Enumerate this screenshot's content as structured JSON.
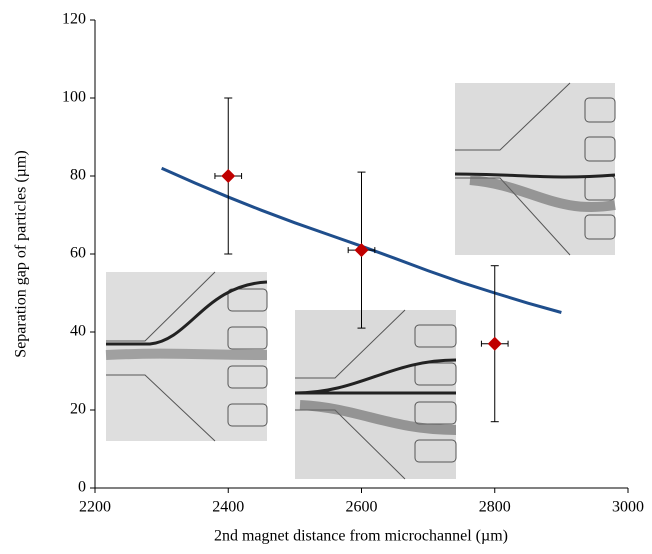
{
  "chart_data": {
    "type": "scatter",
    "xlabel": "2nd magnet distance from microchannel (µm)",
    "ylabel": "Separation gap of particles (µm)",
    "xlim": [
      2200,
      3000
    ],
    "xticks": [
      2200,
      2400,
      2600,
      2800,
      3000
    ],
    "ylim": [
      0,
      120
    ],
    "yticks": [
      0,
      20,
      40,
      60,
      80,
      100,
      120
    ],
    "series": [
      {
        "type": "line",
        "color": "#1f4e8c",
        "x": [
          2300,
          2350,
          2400,
          2450,
          2500,
          2550,
          2600,
          2650,
          2700,
          2750,
          2800,
          2850,
          2900
        ],
        "values": [
          82,
          78.2,
          74.6,
          71.2,
          68,
          65,
          62,
          58.9,
          55.7,
          52.7,
          50,
          47.4,
          45
        ]
      },
      {
        "type": "scatter",
        "color": "#c00000",
        "x": [
          2400,
          2600,
          2800
        ],
        "values": [
          80,
          61,
          37
        ],
        "errors": [
          20,
          20,
          20
        ],
        "x_errors": [
          20,
          20,
          20
        ]
      }
    ]
  }
}
